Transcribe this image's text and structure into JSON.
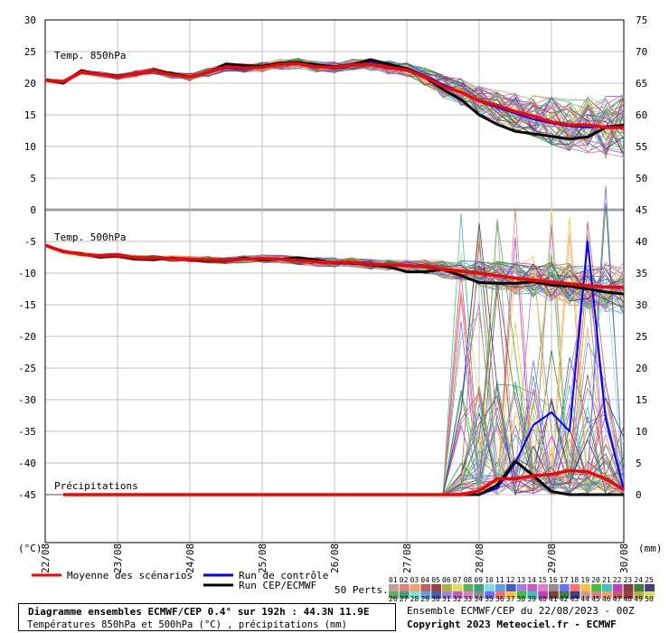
{
  "chart_data": {
    "type": "line",
    "panels": [
      {
        "label": "Temp. 850hPa",
        "unit": "(°C)"
      },
      {
        "label": "Temp. 500hPa",
        "unit": "(°C)"
      },
      {
        "label": "Précipitations",
        "unit": "(mm)"
      }
    ],
    "left_axis_ticks": [
      "30",
      "25",
      "20",
      "15",
      "10",
      "5",
      "0",
      "-5",
      "-10",
      "-15",
      "-20",
      "-25",
      "-30",
      "-35",
      "-40",
      "-45"
    ],
    "right_axis_ticks": [
      "75",
      "70",
      "65",
      "60",
      "55",
      "50",
      "45",
      "40",
      "35",
      "30",
      "25",
      "20",
      "15",
      "10",
      "5",
      "0"
    ],
    "left_unit": "(°C)",
    "right_unit": "(mm)",
    "x_dates": [
      "22/08",
      "23/08",
      "24/08",
      "25/08",
      "26/08",
      "27/08",
      "28/08",
      "29/08",
      "30/08"
    ],
    "hours": [
      0,
      6,
      12,
      18,
      24,
      30,
      36,
      42,
      48,
      54,
      60,
      66,
      72,
      78,
      84,
      90,
      96,
      102,
      108,
      114,
      120,
      126,
      132,
      138,
      144,
      150,
      156,
      162,
      168,
      174,
      180,
      186,
      192
    ],
    "temp850": {
      "mean": [
        20.5,
        20.2,
        21.8,
        21.4,
        21.0,
        21.5,
        22.0,
        21.3,
        21.0,
        21.7,
        22.6,
        22.4,
        22.5,
        23.0,
        23.1,
        22.6,
        22.5,
        22.9,
        23.0,
        22.5,
        22.1,
        21.0,
        19.5,
        18.6,
        17.2,
        16.5,
        15.5,
        14.8,
        13.9,
        13.4,
        13.4,
        13.0,
        13.0
      ],
      "control": [
        20.5,
        20.2,
        21.9,
        21.3,
        21.1,
        21.6,
        22.1,
        21.4,
        21.0,
        21.6,
        22.4,
        22.2,
        22.6,
        23.1,
        23.2,
        22.7,
        22.3,
        22.8,
        23.4,
        22.9,
        22.4,
        21.2,
        19.8,
        18.6,
        17.1,
        16.2,
        15.2,
        14.3,
        13.7,
        13.2,
        13.0,
        13.2,
        13.4
      ],
      "cep": [
        20.5,
        20.0,
        22.0,
        21.4,
        21.1,
        21.4,
        22.1,
        21.5,
        21.0,
        21.7,
        23.0,
        22.8,
        22.7,
        23.2,
        23.3,
        22.9,
        22.6,
        23.0,
        23.7,
        23.0,
        22.3,
        21.0,
        19.0,
        17.4,
        15.0,
        13.5,
        12.4,
        12.0,
        11.6,
        11.2,
        11.5,
        13.0,
        13.4
      ]
    },
    "temp500": {
      "mean": [
        -5.6,
        -6.6,
        -7.0,
        -7.3,
        -7.2,
        -7.6,
        -7.6,
        -7.7,
        -7.8,
        -7.9,
        -8.0,
        -7.8,
        -7.7,
        -7.8,
        -8.0,
        -8.2,
        -8.3,
        -8.3,
        -8.6,
        -8.7,
        -8.8,
        -9.0,
        -9.4,
        -9.7,
        -10.0,
        -10.4,
        -10.8,
        -11.1,
        -11.4,
        -11.7,
        -12.0,
        -12.2,
        -12.3
      ],
      "control": [
        -5.6,
        -6.5,
        -7.0,
        -7.2,
        -7.3,
        -7.5,
        -7.7,
        -7.7,
        -7.9,
        -7.9,
        -8.0,
        -7.8,
        -7.9,
        -7.9,
        -8.0,
        -8.3,
        -8.4,
        -8.5,
        -8.5,
        -8.7,
        -8.9,
        -9.0,
        -9.3,
        -9.7,
        -10.1,
        -10.4,
        -10.7,
        -11.0,
        -11.3,
        -11.6,
        -11.9,
        -12.1,
        -12.2
      ],
      "cep": [
        -5.6,
        -6.6,
        -6.9,
        -7.5,
        -7.3,
        -7.8,
        -7.9,
        -7.6,
        -7.9,
        -8.1,
        -8.1,
        -7.6,
        -7.9,
        -7.8,
        -7.6,
        -7.9,
        -8.4,
        -8.4,
        -8.7,
        -9.0,
        -9.8,
        -9.8,
        -9.4,
        -10.4,
        -11.5,
        -11.6,
        -11.6,
        -11.4,
        -11.9,
        -12.1,
        -12.5,
        -13.0,
        -13.3
      ]
    },
    "precip_mm": {
      "mean": [
        0,
        0,
        0,
        0,
        0,
        0,
        0,
        0,
        0,
        0,
        0,
        0,
        0,
        0,
        0,
        0,
        0,
        0,
        0,
        0,
        0,
        0,
        0,
        0,
        0.6,
        2.5,
        2.5,
        3.0,
        3.2,
        3.8,
        3.6,
        2.5,
        0.8
      ],
      "control": [
        0,
        0,
        0,
        0,
        0,
        0,
        0,
        0,
        0,
        0,
        0,
        0,
        0,
        0,
        0,
        0,
        0,
        0,
        0,
        0,
        0,
        0,
        0,
        0,
        0,
        1.0,
        5.0,
        11.0,
        13.0,
        10.0,
        40.0,
        12.0,
        0.8
      ],
      "cep": [
        0,
        0,
        0,
        0,
        0,
        0,
        0,
        0,
        0,
        0,
        0,
        0,
        0,
        0,
        0,
        0,
        0,
        0,
        0,
        0,
        0,
        0,
        0,
        0,
        0,
        1.5,
        5.3,
        3.0,
        0.5,
        0,
        0,
        0,
        0
      ]
    }
  },
  "legend": {
    "mean": "Moyenne des scénarios",
    "control": "Run de contrôle",
    "cep": "Run CEP/ECMWF",
    "perts": "50 Perts.",
    "pert_numbers_top": [
      "01",
      "02",
      "03",
      "04",
      "05",
      "06",
      "07",
      "08",
      "09",
      "10",
      "11",
      "12",
      "13",
      "14",
      "15",
      "16",
      "17",
      "18",
      "19",
      "20",
      "21",
      "22",
      "23",
      "24",
      "25"
    ],
    "pert_numbers_bottom": [
      "26",
      "27",
      "28",
      "29",
      "30",
      "31",
      "32",
      "33",
      "34",
      "35",
      "36",
      "37",
      "38",
      "39",
      "40",
      "41",
      "42",
      "43",
      "44",
      "45",
      "46",
      "47",
      "48",
      "49",
      "50"
    ]
  },
  "colors": {
    "mean": "#ff0000",
    "control": "#0000ff",
    "cep": "#000000",
    "grid": "#c0c0c0",
    "separator": "#a0a0a0",
    "pert_palette": [
      "#bf9f9f",
      "#df7f7f",
      "#ef9f6f",
      "#bf5f5f",
      "#9f3f3f",
      "#afaf3f",
      "#dfdf5f",
      "#5faf5f",
      "#3f9f7f",
      "#7fdfdf",
      "#5f9fdf",
      "#3f5fbf",
      "#9f7fdf",
      "#bf5fbf",
      "#df7fbf",
      "#8f8f8f",
      "#6f6fff",
      "#ff6f6f",
      "#ffbf3f",
      "#3fbf3f",
      "#3fbfbf",
      "#bf3fbf",
      "#7f3f3f",
      "#3f7f3f",
      "#3f3f7f"
    ]
  },
  "title_box": {
    "line1": "Diagramme ensembles ECMWF/CEP 0.4° sur 192h : 44.3N 11.9E",
    "line2": "Températures 850hPa et 500hPa (°C) , précipitations (mm)"
  },
  "footer": {
    "line1": "Ensemble ECMWF/CEP du 22/08/2023 - 00Z",
    "line2": "Copyright 2023 Meteociel.fr - ECMWF"
  }
}
